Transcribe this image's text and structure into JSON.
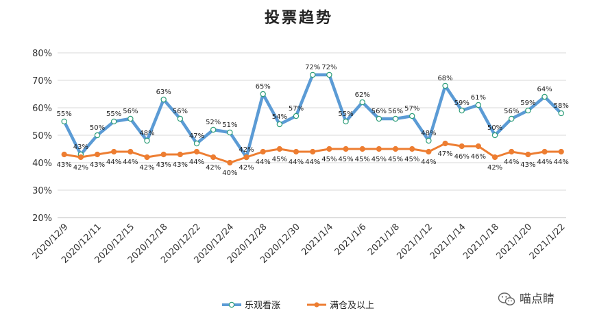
{
  "chart_data": {
    "type": "line",
    "title": "投票趋势",
    "xlabel": "",
    "ylabel": "",
    "ylim": [
      0.2,
      0.8
    ],
    "yticks": [
      "20%",
      "30%",
      "40%",
      "50%",
      "60%",
      "70%",
      "80%"
    ],
    "ytick_values": [
      0.2,
      0.3,
      0.4,
      0.5,
      0.6,
      0.7,
      0.8
    ],
    "x_tick_labels": [
      "2020/12/9",
      "2020/12/11",
      "2020/12/15",
      "2020/12/18",
      "2020/12/22",
      "2020/12/24",
      "2020/12/28",
      "2020/12/30",
      "2021/1/4",
      "2021/1/6",
      "2021/1/8",
      "2021/1/12",
      "2021/1/14",
      "2021/1/18",
      "2021/1/20",
      "2021/1/22"
    ],
    "x_tick_indices": [
      0,
      2,
      4,
      6,
      8,
      10,
      12,
      14,
      16,
      18,
      20,
      22,
      24,
      26,
      28,
      30
    ],
    "point_count": 31,
    "legend_position": "bottom",
    "series": [
      {
        "name": "乐观看涨",
        "color": "#5b9bd5",
        "marker": "hollow-circle",
        "label_position": "above",
        "values": [
          0.55,
          0.43,
          0.5,
          0.55,
          0.56,
          0.48,
          0.63,
          0.56,
          0.47,
          0.52,
          0.51,
          0.42,
          0.65,
          0.54,
          0.57,
          0.72,
          0.72,
          0.55,
          0.62,
          0.56,
          0.56,
          0.57,
          0.48,
          0.68,
          0.59,
          0.61,
          0.5,
          0.56,
          0.59,
          0.64,
          0.58
        ],
        "labels": [
          "55%",
          "43%",
          "50%",
          "55%",
          "56%",
          "48%",
          "63%",
          "56%",
          "47%",
          "52%",
          "51%",
          "42%",
          "65%",
          "54%",
          "57%",
          "72%",
          "72%",
          "55%",
          "62%",
          "56%",
          "56%",
          "57%",
          "48%",
          "68%",
          "59%",
          "61%",
          "50%",
          "56%",
          "59%",
          "64%",
          "58%"
        ]
      },
      {
        "name": "满仓及以上",
        "color": "#ed7d31",
        "marker": "filled-circle",
        "label_position": "below",
        "values": [
          0.43,
          0.42,
          0.43,
          0.44,
          0.44,
          0.42,
          0.43,
          0.43,
          0.44,
          0.42,
          0.4,
          0.42,
          0.44,
          0.45,
          0.44,
          0.44,
          0.45,
          0.45,
          0.45,
          0.45,
          0.45,
          0.45,
          0.44,
          0.47,
          0.46,
          0.46,
          0.42,
          0.44,
          0.43,
          0.44,
          0.44
        ],
        "labels": [
          "43%",
          "42%",
          "43%",
          "44%",
          "44%",
          "42%",
          "43%",
          "43%",
          "44%",
          "42%",
          "40%",
          "42%",
          "44%",
          "45%",
          "44%",
          "44%",
          "45%",
          "45%",
          "45%",
          "45%",
          "45%",
          "45%",
          "44%",
          "47%",
          "46%",
          "46%",
          "42%",
          "44%",
          "43%",
          "44%",
          "44%"
        ]
      }
    ]
  },
  "watermark": {
    "text": "喵点睛",
    "icon": "wechat-icon"
  }
}
